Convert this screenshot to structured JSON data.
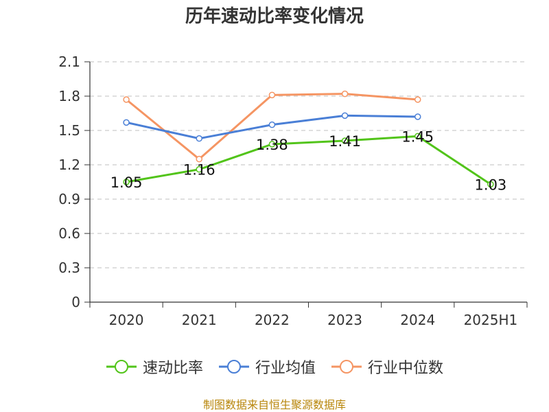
{
  "title": "历年速动比率变化情况",
  "source": "制图数据来自恒生聚源数据库",
  "chart_data": {
    "type": "line",
    "title": "历年速动比率变化情况",
    "categories": [
      "2020",
      "2021",
      "2022",
      "2023",
      "2024",
      "2025H1"
    ],
    "y_ticks": [
      "0",
      "0.3",
      "0.6",
      "0.9",
      "1.2",
      "1.5",
      "1.8",
      "2.1"
    ],
    "ylim": [
      0,
      2.1
    ],
    "grid": true,
    "legend_position": "bottom",
    "series": [
      {
        "name": "速动比率",
        "color": "#52c41a",
        "values": [
          1.05,
          1.16,
          1.38,
          1.41,
          1.45,
          1.03
        ],
        "labels": [
          "1.05",
          "1.16",
          "1.38",
          "1.41",
          "1.45",
          "1.03"
        ]
      },
      {
        "name": "行业均值",
        "color": "#4a7fd6",
        "values": [
          1.57,
          1.43,
          1.55,
          1.63,
          1.62,
          null
        ],
        "labels": []
      },
      {
        "name": "行业中位数",
        "color": "#f59563",
        "values": [
          1.77,
          1.25,
          1.81,
          1.82,
          1.77,
          null
        ],
        "labels": []
      }
    ]
  }
}
